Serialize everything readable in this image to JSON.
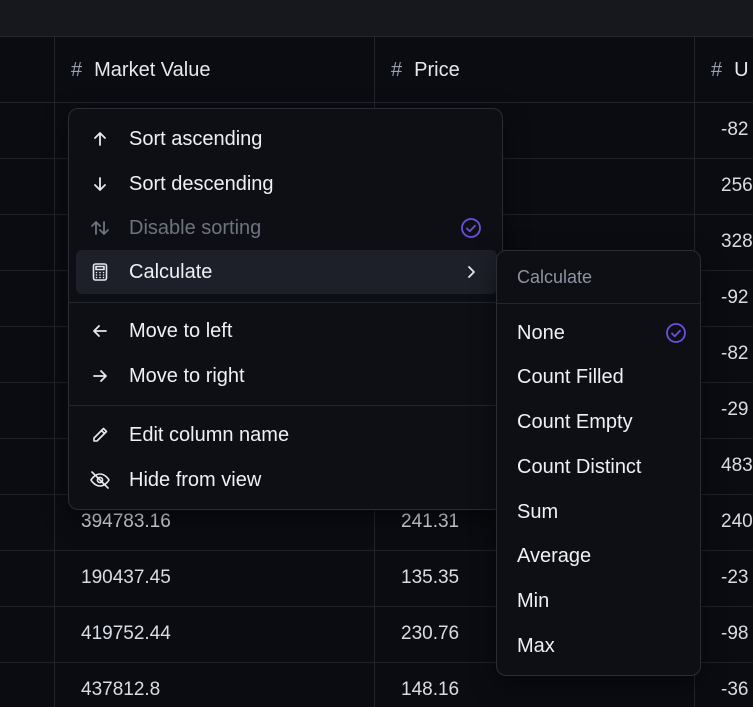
{
  "columns": [
    {
      "label": "Market Value"
    },
    {
      "label": "Price"
    },
    {
      "label": "U"
    }
  ],
  "rows": [
    {
      "market_value": "",
      "price": "",
      "u": "-82"
    },
    {
      "market_value": "",
      "price": "",
      "u": "256"
    },
    {
      "market_value": "",
      "price": "",
      "u": "328"
    },
    {
      "market_value": "",
      "price": "",
      "u": "-92"
    },
    {
      "market_value": "",
      "price": "",
      "u": "-82"
    },
    {
      "market_value": "",
      "price": "",
      "u": "-29"
    },
    {
      "market_value": "",
      "price": "",
      "u": "483"
    },
    {
      "market_value": "394783.16",
      "price": "241.31",
      "u": "240"
    },
    {
      "market_value": "190437.45",
      "price": "135.35",
      "u": "-23"
    },
    {
      "market_value": "419752.44",
      "price": "230.76",
      "u": "-98"
    },
    {
      "market_value": "437812.8",
      "price": "148.16",
      "u": "-36"
    }
  ],
  "menu": {
    "sort_ascending": "Sort ascending",
    "sort_descending": "Sort descending",
    "disable_sorting": "Disable sorting",
    "calculate": "Calculate",
    "move_left": "Move to left",
    "move_right": "Move to right",
    "edit_name": "Edit column name",
    "hide": "Hide from view"
  },
  "submenu": {
    "title": "Calculate",
    "items": [
      "None",
      "Count Filled",
      "Count Empty",
      "Count Distinct",
      "Sum",
      "Average",
      "Min",
      "Max"
    ],
    "selected": "None"
  },
  "colors": {
    "accent": "#6b4fe0",
    "background": "#0a0c12",
    "menu_bg": "#0d0f15"
  }
}
